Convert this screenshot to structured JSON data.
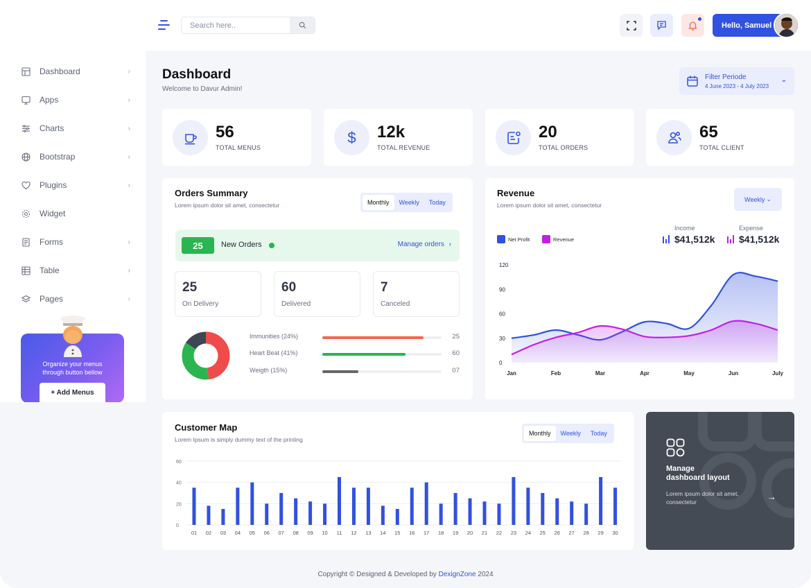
{
  "header": {
    "search_placeholder": "Search here..",
    "greeting": "Hello, Samuel"
  },
  "sidebar": {
    "items": [
      {
        "label": "Dashboard",
        "icon": "dashboard-icon",
        "chevron": true
      },
      {
        "label": "Apps",
        "icon": "monitor-icon",
        "chevron": true
      },
      {
        "label": "Charts",
        "icon": "sliders-icon",
        "chevron": true
      },
      {
        "label": "Bootstrap",
        "icon": "globe-icon",
        "chevron": true
      },
      {
        "label": "Plugins",
        "icon": "heart-icon",
        "chevron": true
      },
      {
        "label": "Widget",
        "icon": "gear-icon",
        "chevron": false
      },
      {
        "label": "Forms",
        "icon": "file-icon",
        "chevron": true
      },
      {
        "label": "Table",
        "icon": "table-icon",
        "chevron": true
      },
      {
        "label": "Pages",
        "icon": "layers-icon",
        "chevron": true
      }
    ],
    "promo": {
      "text_line1": "Organize your menus",
      "text_line2": "through button bellow",
      "button": "+ Add Menus"
    }
  },
  "page": {
    "title": "Dashboard",
    "subtitle": "Welcome to Davur Admin!",
    "filter_title": "Filter Periode",
    "filter_dates": "4 June 2023 - 4 July 2023"
  },
  "stats": [
    {
      "value": "56",
      "label": "TOTAL MENUS",
      "icon": "coffee-cup-icon"
    },
    {
      "value": "12k",
      "label": "TOTAL REVENUE",
      "icon": "dollar-icon"
    },
    {
      "value": "20",
      "label": "TOTAL ORDERS",
      "icon": "order-list-icon"
    },
    {
      "value": "65",
      "label": "TOTAL CLIENT",
      "icon": "users-icon"
    }
  ],
  "orders_summary": {
    "title": "Orders Summary",
    "subtitle": "Lorem ipsum dolor sit amet, consectetur",
    "tabs": [
      "Monthly",
      "Weekly",
      "Today"
    ],
    "active_tab": "Monthly",
    "new_orders_count": "25",
    "new_orders_label": "New Orders",
    "manage_link": "Manage orders",
    "mini": [
      {
        "value": "25",
        "label": "On Delivery"
      },
      {
        "value": "60",
        "label": "Delivered"
      },
      {
        "value": "7",
        "label": "Canceled"
      }
    ],
    "progress": [
      {
        "label": "Immunities (24%)",
        "value": "25",
        "fill": 0.85,
        "color": "#f0694d"
      },
      {
        "label": "Heart Beat (41%)",
        "value": "60",
        "fill": 0.7,
        "color": "#2bb550"
      },
      {
        "label": "Weigth (15%)",
        "value": "07",
        "fill": 0.3,
        "color": "#666666"
      }
    ],
    "donut": {
      "segments": [
        {
          "value": 0.48,
          "color": "#f04b4b"
        },
        {
          "value": 0.36,
          "color": "#2bb550"
        },
        {
          "value": 0.16,
          "color": "#3d4753"
        }
      ]
    }
  },
  "revenue": {
    "title": "Revenue",
    "subtitle": "Lorem ipsum dolor sit amet, consectetur",
    "period": "Weekly",
    "legend": [
      {
        "name": "Net Profit",
        "color": "#3151e0"
      },
      {
        "name": "Revenue",
        "color": "#c21fe6"
      }
    ],
    "income_label": "Income",
    "income_value": "$41,512k",
    "expense_label": "Expense",
    "expense_value": "$41,512k"
  },
  "customer_map": {
    "title": "Customer Map",
    "subtitle": "Lorem Ipsum is simply dummy text of the printing",
    "tabs": [
      "Monthly",
      "Weekly",
      "Today"
    ],
    "active_tab": "Monthly"
  },
  "manage_card": {
    "title_line1": "Manage",
    "title_line2": "dashboard layout",
    "text": "Lorem ipsum dolor sit amet, consectetur"
  },
  "footer": {
    "prefix": "Copyright © Designed & Developed by ",
    "brand": "DexignZone",
    "year": " 2024"
  },
  "chart_data": [
    {
      "type": "area",
      "categories": [
        "Jan",
        "Feb",
        "Mar",
        "Apr",
        "May",
        "Jun",
        "July"
      ],
      "ylim": [
        0,
        120
      ],
      "yticks": [
        0,
        30,
        60,
        90,
        120
      ],
      "series": [
        {
          "name": "Net Profit",
          "color": "#3151e0",
          "x": [
            0,
            0.5,
            1,
            1.5,
            2,
            2.5,
            3,
            3.5,
            4,
            4.5,
            5,
            5.5,
            6
          ],
          "values": [
            30,
            34,
            40,
            34,
            28,
            38,
            50,
            48,
            42,
            70,
            108,
            106,
            100
          ]
        },
        {
          "name": "Revenue",
          "color": "#c21fe6",
          "x": [
            0,
            0.5,
            1,
            1.5,
            2,
            2.5,
            3,
            3.5,
            4,
            4.5,
            5,
            5.5,
            6
          ],
          "values": [
            10,
            22,
            31,
            37,
            45,
            41,
            32,
            31,
            33,
            40,
            51,
            48,
            40
          ]
        }
      ]
    },
    {
      "type": "bar",
      "categories": [
        "01",
        "02",
        "03",
        "04",
        "05",
        "06",
        "07",
        "08",
        "09",
        "10",
        "11",
        "12",
        "13",
        "14",
        "15",
        "16",
        "17",
        "18",
        "19",
        "20",
        "21",
        "22",
        "23",
        "24",
        "25",
        "26",
        "27",
        "28",
        "29",
        "30"
      ],
      "values": [
        35,
        18,
        15,
        35,
        40,
        20,
        30,
        25,
        22,
        20,
        45,
        35,
        35,
        18,
        15,
        35,
        40,
        20,
        30,
        25,
        22,
        20,
        45,
        35,
        30,
        25,
        22,
        20,
        45,
        35
      ],
      "ylim": [
        0,
        60
      ],
      "yticks": [
        0,
        20,
        40,
        60
      ],
      "color": "#3151e0"
    }
  ]
}
